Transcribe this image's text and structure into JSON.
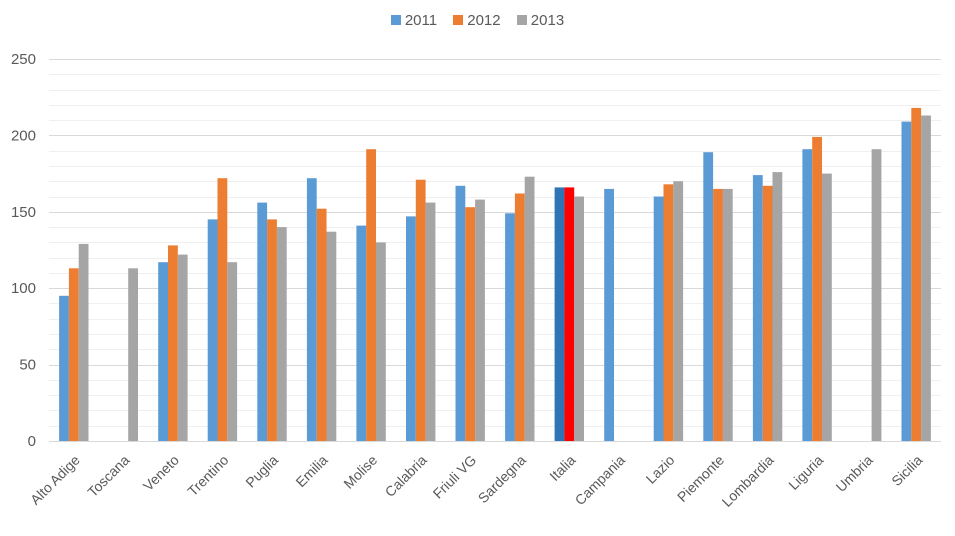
{
  "chart_data": {
    "type": "bar",
    "categories": [
      "Alto Adige",
      "Toscana",
      "Veneto",
      "Trentino",
      "Puglia",
      "Emilia",
      "Molise",
      "Calabria",
      "Friuli VG",
      "Sardegna",
      "Italia",
      "Campania",
      "Lazio",
      "Piemonte",
      "Lombardia",
      "Liguria",
      "Umbria",
      "Sicilia"
    ],
    "series": [
      {
        "name": "2011",
        "color": "#5B9BD5",
        "values": [
          95,
          null,
          117,
          145,
          156,
          172,
          141,
          147,
          167,
          149,
          166,
          165,
          160,
          189,
          174,
          191,
          null,
          209
        ]
      },
      {
        "name": "2012",
        "color": "#ED7D31",
        "values": [
          113,
          null,
          128,
          172,
          145,
          152,
          191,
          171,
          153,
          162,
          166,
          null,
          168,
          165,
          167,
          199,
          null,
          218
        ]
      },
      {
        "name": "2013",
        "color": "#A5A5A5",
        "values": [
          129,
          113,
          122,
          117,
          140,
          137,
          130,
          156,
          158,
          173,
          160,
          null,
          170,
          165,
          176,
          175,
          191,
          213
        ]
      }
    ],
    "highlight": {
      "category": "Italia",
      "colors": {
        "2011": "#2E75B6",
        "2012": "#FF0000",
        "2013": "#A5A5A5"
      }
    },
    "ylim": [
      0,
      250
    ],
    "yticks": [
      0,
      50,
      100,
      150,
      200,
      250
    ],
    "grid": true,
    "legend": "top-center"
  }
}
